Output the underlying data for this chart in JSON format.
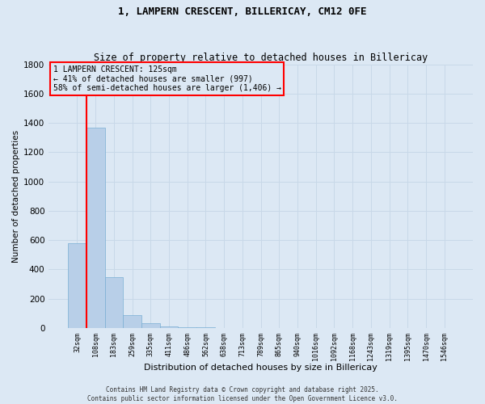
{
  "title": "1, LAMPERN CRESCENT, BILLERICAY, CM12 0FE",
  "subtitle": "Size of property relative to detached houses in Billericay",
  "xlabel": "Distribution of detached houses by size in Billericay",
  "ylabel": "Number of detached properties",
  "categories": [
    "32sqm",
    "108sqm",
    "183sqm",
    "259sqm",
    "335sqm",
    "411sqm",
    "486sqm",
    "562sqm",
    "638sqm",
    "713sqm",
    "789sqm",
    "865sqm",
    "940sqm",
    "1016sqm",
    "1092sqm",
    "1168sqm",
    "1243sqm",
    "1319sqm",
    "1395sqm",
    "1470sqm",
    "1546sqm"
  ],
  "values": [
    580,
    1370,
    350,
    90,
    35,
    10,
    5,
    3,
    2,
    1,
    1,
    1,
    0,
    0,
    0,
    0,
    0,
    0,
    0,
    0,
    0
  ],
  "bar_color": "#b8cfe8",
  "bar_edge_color": "#7aafd4",
  "vline_x_idx": 1,
  "vline_color": "red",
  "ylim": [
    0,
    1800
  ],
  "yticks": [
    0,
    200,
    400,
    600,
    800,
    1000,
    1200,
    1400,
    1600,
    1800
  ],
  "annotation_text": "1 LAMPERN CRESCENT: 125sqm\n← 41% of detached houses are smaller (997)\n58% of semi-detached houses are larger (1,406) →",
  "annotation_box_edgecolor": "red",
  "footer_text": "Contains HM Land Registry data © Crown copyright and database right 2025.\nContains public sector information licensed under the Open Government Licence v3.0.",
  "grid_color": "#c8d8e8",
  "background_color": "#dce8f4",
  "title_fontsize": 9,
  "subtitle_fontsize": 8.5
}
